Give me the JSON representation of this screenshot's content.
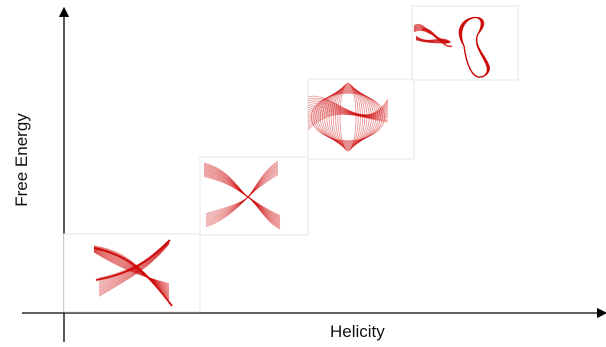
{
  "axes": {
    "x_label": "Helicity",
    "y_label": "Free Energy",
    "line_color": "#000000"
  },
  "panels": [
    {
      "name": "panel-low-helicity",
      "motif": "crossing-ribbons",
      "color": "#cc0000"
    },
    {
      "name": "panel-mid-helicity",
      "motif": "x-crossing",
      "color": "#cc0000"
    },
    {
      "name": "panel-high-helicity",
      "motif": "dense-tangle",
      "color": "#cc0000"
    },
    {
      "name": "panel-highest-helicity",
      "motif": "looped-tangle",
      "color": "#cc0000"
    }
  ]
}
